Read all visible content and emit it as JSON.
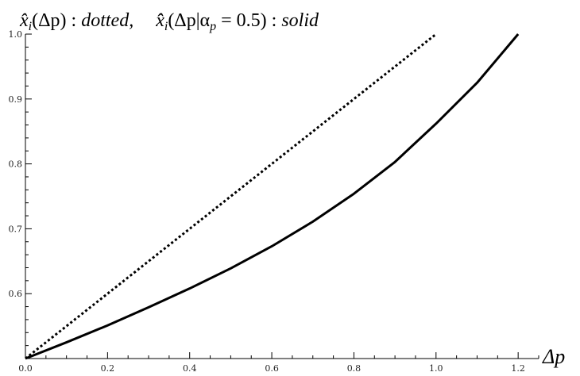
{
  "chart_data": {
    "type": "line",
    "title_parts": {
      "dotted_label": "x̂",
      "dotted_sub": "i",
      "dotted_args": "(Δp) : ",
      "dotted_word": "dotted,",
      "solid_label": "x̂̂",
      "solid_sub": "i",
      "solid_args_a": "(Δp|α",
      "solid_args_sub": "p",
      "solid_args_b": " = 0.5) : ",
      "solid_word": "solid"
    },
    "xlabel": "Δp",
    "ylabel": "",
    "xlim": [
      0.0,
      1.25
    ],
    "ylim": [
      0.5,
      1.0
    ],
    "x_ticks": [
      "0.0",
      "0.2",
      "0.4",
      "0.6",
      "0.8",
      "1.0",
      "1.2"
    ],
    "y_ticks": [
      "0.6",
      "0.7",
      "0.8",
      "0.9",
      "1.0"
    ],
    "grid": false,
    "series": [
      {
        "style": "dotted",
        "x": [
          0.0,
          0.1,
          0.2,
          0.3,
          0.4,
          0.5,
          0.6,
          0.7,
          0.8,
          0.9,
          1.0
        ],
        "y": [
          0.5,
          0.55,
          0.6,
          0.65,
          0.7,
          0.75,
          0.8,
          0.85,
          0.9,
          0.95,
          1.0
        ]
      },
      {
        "style": "solid",
        "x": [
          0.0,
          0.1,
          0.2,
          0.3,
          0.4,
          0.5,
          0.6,
          0.7,
          0.8,
          0.9,
          1.0,
          1.1,
          1.2
        ],
        "y": [
          0.5,
          0.525,
          0.551,
          0.579,
          0.608,
          0.639,
          0.673,
          0.711,
          0.754,
          0.803,
          0.862,
          0.925,
          1.0
        ]
      }
    ]
  }
}
